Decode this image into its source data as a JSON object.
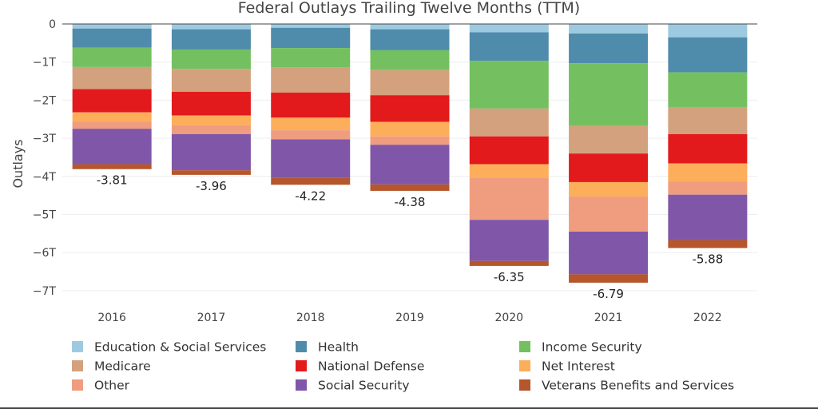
{
  "chart_data": {
    "type": "bar",
    "stacked": true,
    "title": "Federal Outlays Trailing Twelve Months (TTM)",
    "ylabel": "Outlays",
    "xlabel": "",
    "categories": [
      "2016",
      "2017",
      "2018",
      "2019",
      "2020",
      "2021",
      "2022"
    ],
    "ylim": [
      -7.2,
      0
    ],
    "yticks": [
      0,
      -1,
      -2,
      -3,
      -4,
      -5,
      -6,
      -7
    ],
    "ytick_labels": [
      "0",
      "−1T",
      "−2T",
      "−3T",
      "−4T",
      "−5T",
      "−6T",
      "−7T"
    ],
    "grid": true,
    "legend_position": "bottom",
    "series": [
      {
        "name": "Education & Social Services",
        "color": "#9ecae1",
        "values": [
          -0.12,
          -0.14,
          -0.1,
          -0.14,
          -0.22,
          -0.25,
          -0.35
        ]
      },
      {
        "name": "Health",
        "color": "#4f8cab",
        "values": [
          -0.5,
          -0.53,
          -0.53,
          -0.55,
          -0.75,
          -0.78,
          -0.92
        ]
      },
      {
        "name": "Income Security",
        "color": "#74c060",
        "values": [
          -0.51,
          -0.51,
          -0.51,
          -0.52,
          -1.25,
          -1.65,
          -0.91
        ]
      },
      {
        "name": "Medicare",
        "color": "#d4a17e",
        "values": [
          -0.58,
          -0.6,
          -0.66,
          -0.66,
          -0.73,
          -0.72,
          -0.71
        ]
      },
      {
        "name": "National Defense",
        "color": "#e31a1c",
        "values": [
          -0.61,
          -0.62,
          -0.66,
          -0.7,
          -0.73,
          -0.75,
          -0.77
        ]
      },
      {
        "name": "Net Interest",
        "color": "#fdae5b",
        "values": [
          -0.24,
          -0.26,
          -0.33,
          -0.38,
          -0.35,
          -0.38,
          -0.48
        ]
      },
      {
        "name": "Other",
        "color": "#ef9d7e",
        "values": [
          -0.19,
          -0.23,
          -0.24,
          -0.22,
          -1.11,
          -0.92,
          -0.34
        ]
      },
      {
        "name": "Social Security",
        "color": "#8057a8",
        "values": [
          -0.93,
          -0.95,
          -1.01,
          -1.04,
          -1.08,
          -1.12,
          -1.19
        ]
      },
      {
        "name": "Veterans Benefits and Services",
        "color": "#b5562c",
        "values": [
          -0.13,
          -0.12,
          -0.18,
          -0.17,
          -0.13,
          -0.22,
          -0.21
        ]
      }
    ],
    "totals": [
      "-3.81",
      "-3.96",
      "-4.22",
      "-4.38",
      "-6.35",
      "-6.79",
      "-5.88"
    ]
  }
}
